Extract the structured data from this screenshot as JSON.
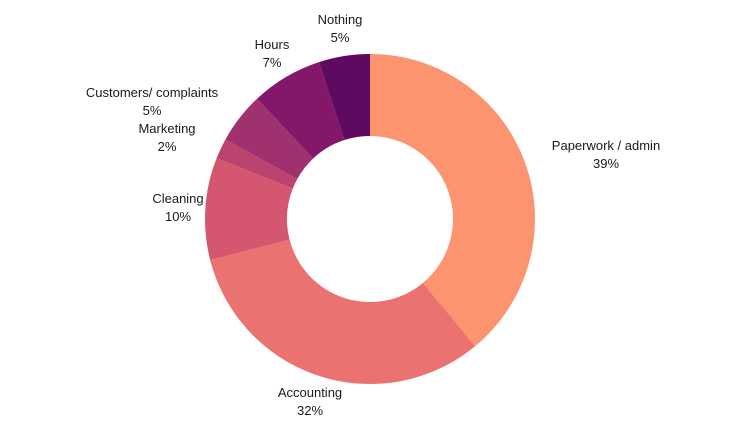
{
  "chart_data": {
    "type": "pie",
    "variant": "donut",
    "title": "",
    "slices": [
      {
        "label": "Paperwork / admin",
        "value": 39,
        "value_label": "39%",
        "color": "#fd9470"
      },
      {
        "label": "Accounting",
        "value": 32,
        "value_label": "32%",
        "color": "#ea7371"
      },
      {
        "label": "Cleaning",
        "value": 10,
        "value_label": "10%",
        "color": "#d4566f"
      },
      {
        "label": "Marketing",
        "value": 2,
        "value_label": "2%",
        "color": "#bc436e"
      },
      {
        "label": "Customers/ complaints",
        "value": 5,
        "value_label": "5%",
        "color": "#a0316f"
      },
      {
        "label": "Hours",
        "value": 7,
        "value_label": "7%",
        "color": "#83176a"
      },
      {
        "label": "Nothing",
        "value": 5,
        "value_label": "5%",
        "color": "#5f0a61"
      }
    ],
    "start": "top",
    "direction": "clockwise",
    "legend": "none"
  }
}
